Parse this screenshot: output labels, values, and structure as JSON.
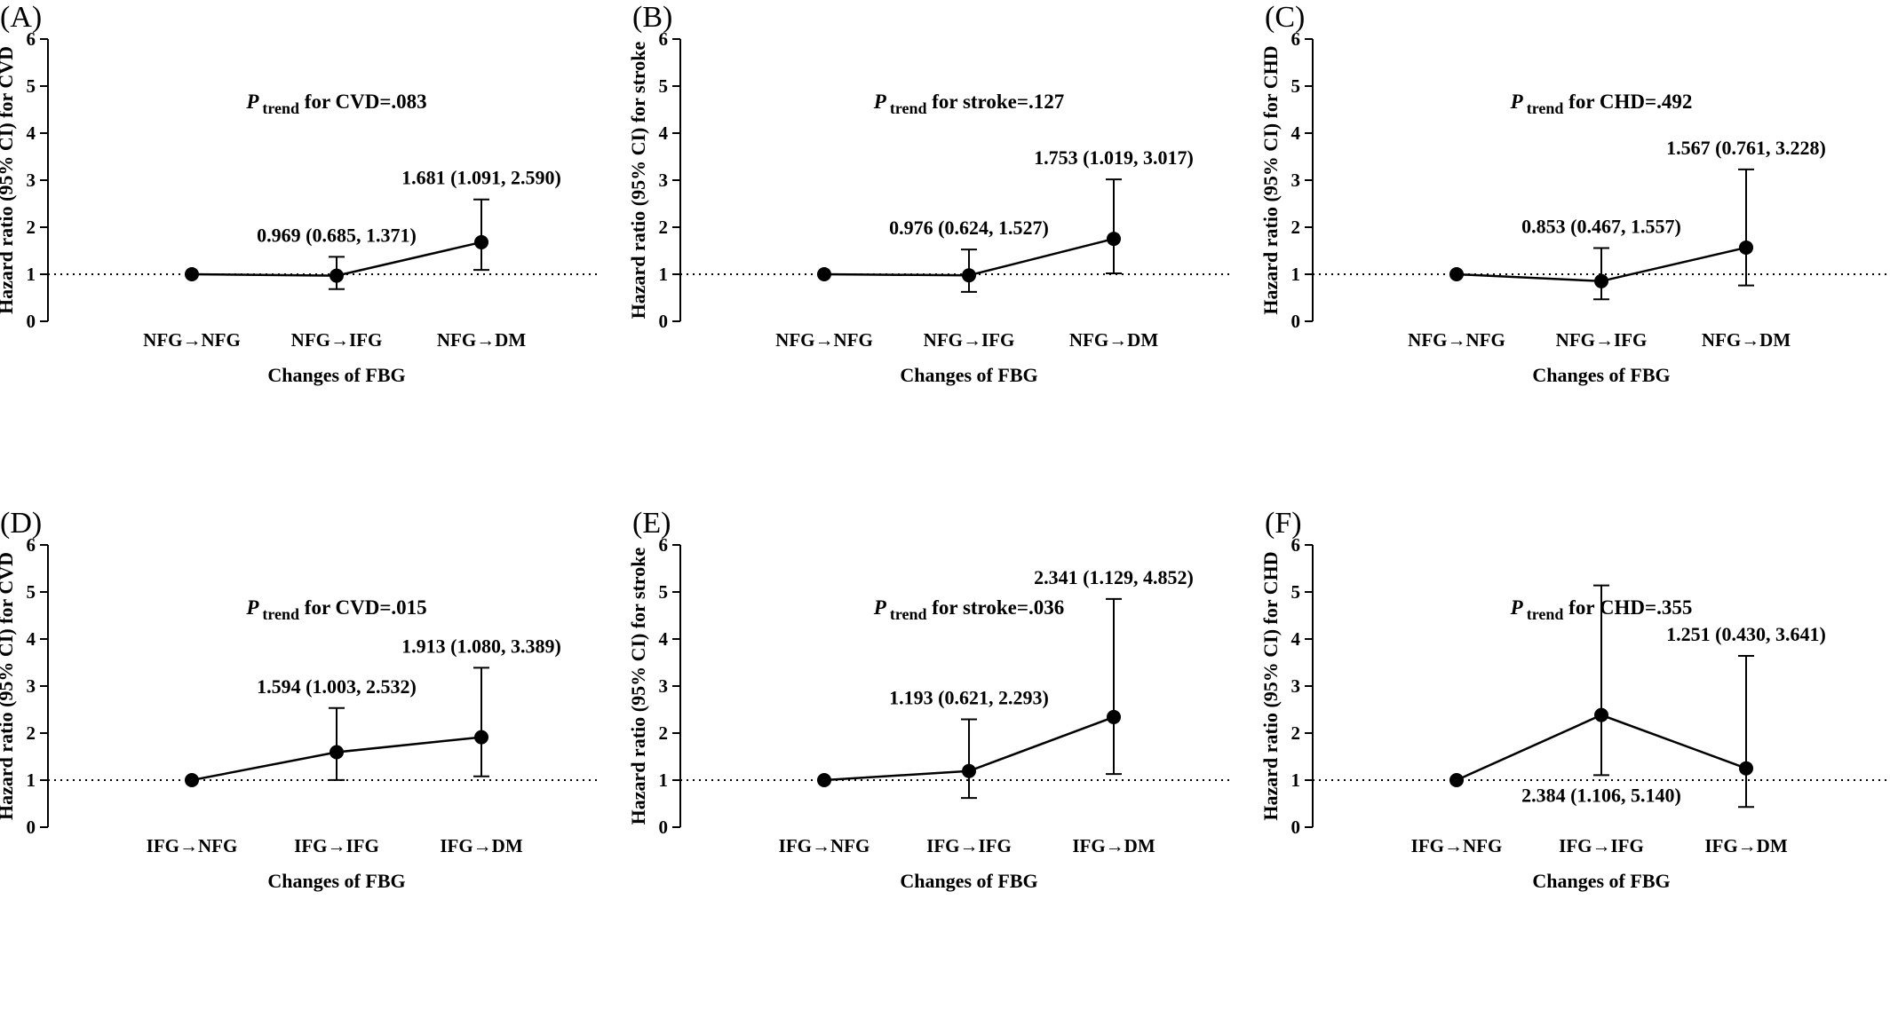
{
  "chart_data": [
    {
      "panel": "(A)",
      "type": "line",
      "ylabel": "Hazard ratio (95% CI) for CVD",
      "xlabel": "Changes of FBG",
      "ylim": [
        0,
        6
      ],
      "yticks": [
        "0",
        "1",
        "2",
        "3",
        "4",
        "5",
        "6"
      ],
      "reference_line": 1,
      "categories": [
        "NFG→NFG",
        "NFG→IFG",
        "NFG→DM"
      ],
      "hr": [
        1.0,
        0.969,
        1.681
      ],
      "lower": [
        null,
        0.685,
        1.091
      ],
      "upper": [
        null,
        1.371,
        2.59
      ],
      "labels": [
        "",
        "0.969 (0.685, 1.371)",
        "1.681 (1.091, 2.590)"
      ],
      "p_trend": {
        "p": "P",
        "sub": "trend",
        "text": " for CVD=.083"
      }
    },
    {
      "panel": "(B)",
      "type": "line",
      "ylabel": "Hazard ratio (95% CI) for stroke",
      "xlabel": "Changes of FBG",
      "ylim": [
        0,
        6
      ],
      "yticks": [
        "0",
        "1",
        "2",
        "3",
        "4",
        "5",
        "6"
      ],
      "reference_line": 1,
      "categories": [
        "NFG→NFG",
        "NFG→IFG",
        "NFG→DM"
      ],
      "hr": [
        1.0,
        0.976,
        1.753
      ],
      "lower": [
        null,
        0.624,
        1.019
      ],
      "upper": [
        null,
        1.527,
        3.017
      ],
      "labels": [
        "",
        "0.976 (0.624, 1.527)",
        "1.753 (1.019, 3.017)"
      ],
      "p_trend": {
        "p": "P",
        "sub": "trend",
        "text": " for stroke=.127"
      }
    },
    {
      "panel": "(C)",
      "type": "line",
      "ylabel": "Hazard ratio (95% CI) for CHD",
      "xlabel": "Changes of FBG",
      "ylim": [
        0,
        6
      ],
      "yticks": [
        "0",
        "1",
        "2",
        "3",
        "4",
        "5",
        "6"
      ],
      "reference_line": 1,
      "categories": [
        "NFG→NFG",
        "NFG→IFG",
        "NFG→DM"
      ],
      "hr": [
        1.0,
        0.853,
        1.567
      ],
      "lower": [
        null,
        0.467,
        0.761
      ],
      "upper": [
        null,
        1.557,
        3.228
      ],
      "labels": [
        "",
        "0.853 (0.467, 1.557)",
        "1.567 (0.761, 3.228)"
      ],
      "p_trend": {
        "p": "P",
        "sub": "trend",
        "text": " for CHD=.492"
      }
    },
    {
      "panel": "(D)",
      "type": "line",
      "ylabel": "Hazard ratio (95% CI) for CVD",
      "xlabel": "Changes of FBG",
      "ylim": [
        0,
        6
      ],
      "yticks": [
        "0",
        "1",
        "2",
        "3",
        "4",
        "5",
        "6"
      ],
      "reference_line": 1,
      "categories": [
        "IFG→NFG",
        "IFG→IFG",
        "IFG→DM"
      ],
      "hr": [
        1.0,
        1.594,
        1.913
      ],
      "lower": [
        null,
        1.003,
        1.08
      ],
      "upper": [
        null,
        2.532,
        3.389
      ],
      "labels": [
        "",
        "1.594 (1.003, 2.532)",
        "1.913 (1.080, 3.389)"
      ],
      "p_trend": {
        "p": "P",
        "sub": "trend",
        "text": " for CVD=.015"
      }
    },
    {
      "panel": "(E)",
      "type": "line",
      "ylabel": "Hazard ratio (95% CI) for stroke",
      "xlabel": "Changes of FBG",
      "ylim": [
        0,
        6
      ],
      "yticks": [
        "0",
        "1",
        "2",
        "3",
        "4",
        "5",
        "6"
      ],
      "reference_line": 1,
      "categories": [
        "IFG→NFG",
        "IFG→IFG",
        "IFG→DM"
      ],
      "hr": [
        1.0,
        1.193,
        2.341
      ],
      "lower": [
        null,
        0.621,
        1.129
      ],
      "upper": [
        null,
        2.293,
        4.852
      ],
      "labels": [
        "",
        "1.193 (0.621, 2.293)",
        "2.341 (1.129, 4.852)"
      ],
      "p_trend": {
        "p": "P",
        "sub": "trend",
        "text": " for stroke=.036"
      }
    },
    {
      "panel": "(F)",
      "type": "line",
      "ylabel": "Hazard ratio (95% CI) for CHD",
      "xlabel": "Changes of FBG",
      "ylim": [
        0,
        6
      ],
      "yticks": [
        "0",
        "1",
        "2",
        "3",
        "4",
        "5",
        "6"
      ],
      "reference_line": 1,
      "categories": [
        "IFG→NFG",
        "IFG→IFG",
        "IFG→DM"
      ],
      "hr": [
        1.0,
        2.384,
        1.251
      ],
      "lower": [
        null,
        1.106,
        0.43
      ],
      "upper": [
        null,
        5.14,
        3.641
      ],
      "labels": [
        "",
        "2.384 (1.106, 5.140)",
        "1.251 (0.430, 3.641)"
      ],
      "label_below": [
        false,
        true,
        false
      ],
      "p_trend": {
        "p": "P",
        "sub": "trend",
        "text": " for CHD=.355"
      }
    }
  ]
}
